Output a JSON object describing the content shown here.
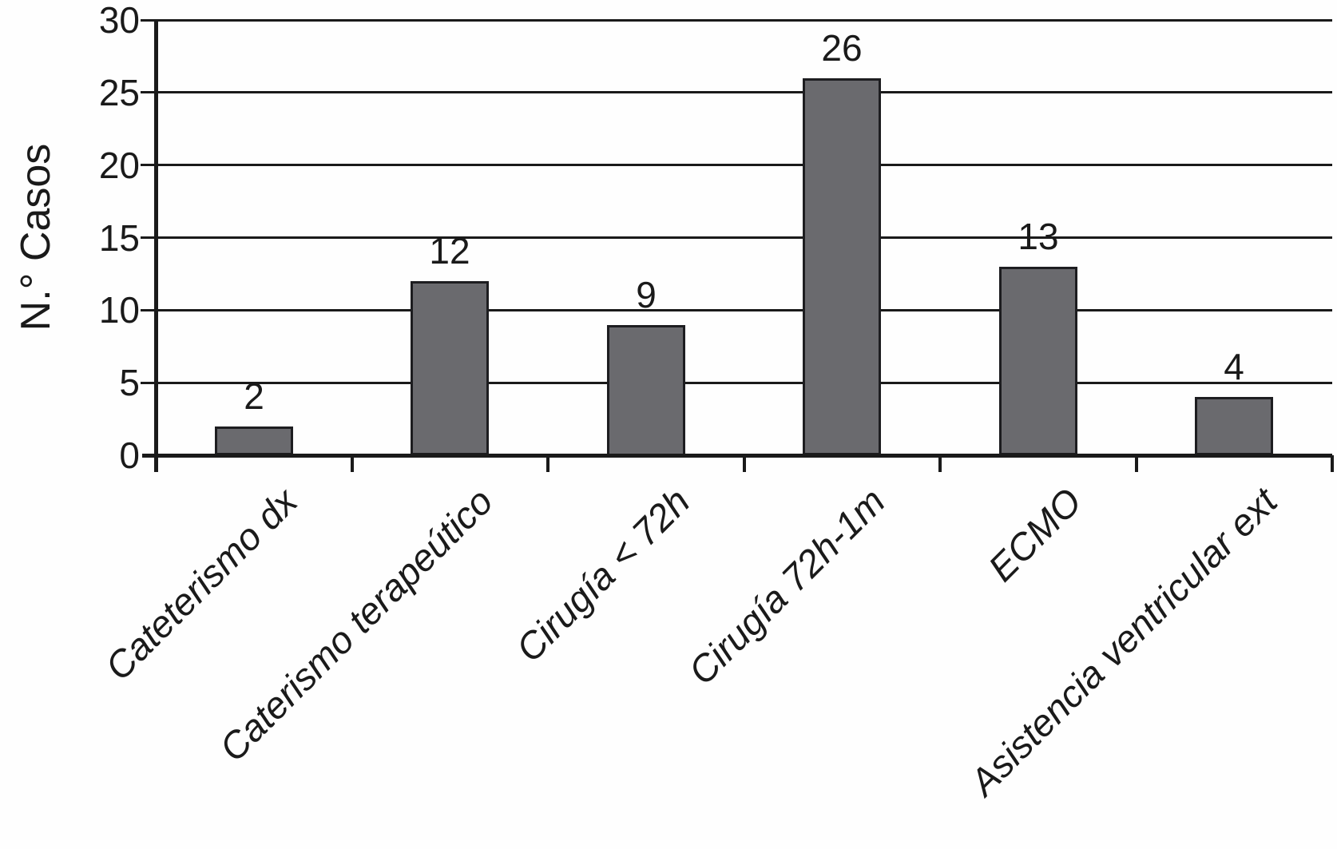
{
  "figure": {
    "background_color": "#fefefe",
    "text_color": "#1a1a1a",
    "axis_color": "#1a1a1a"
  },
  "chart_data": {
    "type": "bar",
    "title": "",
    "xlabel": "",
    "ylabel": "N.° Casos",
    "categories": [
      "Cateterismo dx",
      "Caterismo terapeútico",
      "Cirugía < 72h",
      "Cirugía 72h-1m",
      "ECMO",
      "Asistencia ventricular ext"
    ],
    "values": [
      2,
      12,
      9,
      26,
      13,
      4
    ],
    "data_labels": [
      "2",
      "12",
      "9",
      "26",
      "13",
      "4"
    ],
    "yticks": [
      0,
      5,
      10,
      15,
      20,
      25,
      30
    ],
    "ytick_labels": [
      "0",
      "5",
      "10",
      "15",
      "20",
      "25",
      "30"
    ],
    "ylim": [
      0,
      30
    ],
    "grid": "horizontal",
    "legend_position": "none",
    "bar_color": "#6a6a6e",
    "bar_border_color": "#1d1d20",
    "category_label_style": "italic, rotated 45deg"
  }
}
